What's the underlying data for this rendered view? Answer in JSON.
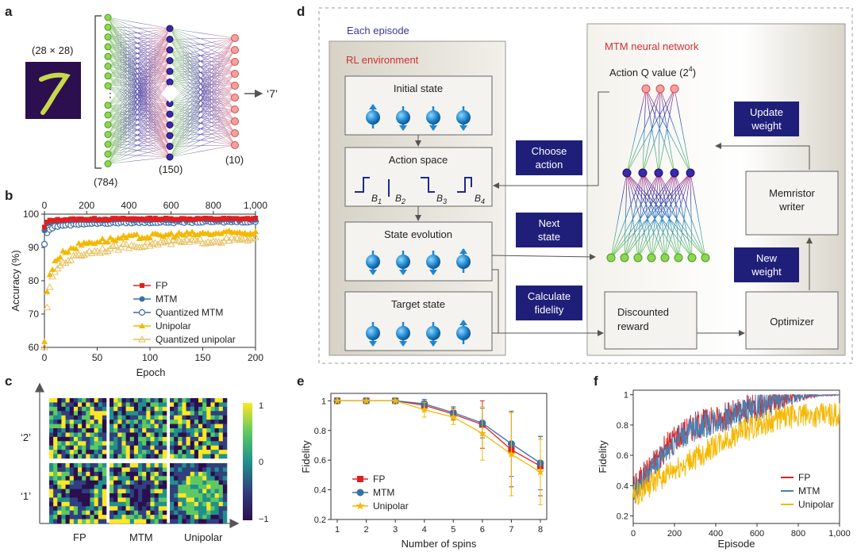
{
  "panel_letters": {
    "a": "a",
    "b": "b",
    "c": "c",
    "d": "d",
    "e": "e",
    "f": "f"
  },
  "panel_a": {
    "input_size": "(28 × 28)",
    "layer_labels": [
      "(784)",
      "(150)",
      "(10)"
    ],
    "output": "‘7’",
    "colors": [
      "#7fd14b",
      "#2a1f9a",
      "#f08080"
    ]
  },
  "panel_d": {
    "episode_label": "Each episode",
    "env_label": "RL environment",
    "net_label": "MTM neural network",
    "initial_state": "Initial state",
    "action_space": "Action space",
    "action_labels": [
      "B",
      "B",
      "B",
      "B"
    ],
    "action_subscripts": [
      "1",
      "2",
      "3",
      "4"
    ],
    "state_evolution": "State evolution",
    "target_state": "Target state",
    "choose_action": [
      "Choose",
      "action"
    ],
    "next_state": [
      "Next",
      "state"
    ],
    "calculate_fidelity": [
      "Calculate",
      "fidelity"
    ],
    "action_q": "Action Q value (2",
    "action_q_exp": "4",
    "action_q_close": ")",
    "update_weight": [
      "Update",
      "weight"
    ],
    "memristor_writer": [
      "Memristor",
      "writer"
    ],
    "new_weight": [
      "New",
      "weight"
    ],
    "discounted_reward": [
      "Discounted",
      "reward"
    ],
    "optimizer": "Optimizer"
  },
  "panel_c": {
    "row_labels": [
      "‘2’",
      "‘1’"
    ],
    "col_labels": [
      "FP",
      "MTM",
      "Unipolar"
    ],
    "colorbar_ticks": [
      "1",
      "0",
      "−1"
    ]
  },
  "chart_data": [
    {
      "id": "b",
      "type": "scatter",
      "xlabel": "Epoch",
      "ylabel": "Accuracy (%)",
      "xlim": [
        0,
        200
      ],
      "ylim": [
        60,
        100
      ],
      "x_ticks": [
        "0",
        "50",
        "100",
        "150",
        "200"
      ],
      "y_ticks": [
        "60",
        "70",
        "80",
        "90",
        "100"
      ],
      "top_xlim": [
        0,
        1000
      ],
      "top_x_ticks": [
        "0",
        "200",
        "400",
        "600",
        "800",
        "1,000"
      ],
      "legend": [
        "FP",
        "MTM",
        "Quantized MTM",
        "Unipolar",
        "Quantized unipolar"
      ],
      "series": [
        {
          "name": "FP",
          "color": "#e02020",
          "marker": "square",
          "x": [
            0,
            2,
            5,
            10,
            20,
            40,
            80,
            120,
            160,
            200
          ],
          "y": [
            96,
            97.5,
            98,
            98.2,
            98.4,
            98.5,
            98.6,
            98.6,
            98.6,
            98.6
          ]
        },
        {
          "name": "MTM",
          "color": "#3b6ea8",
          "marker": "circle",
          "x": [
            0,
            2,
            5,
            10,
            20,
            40,
            80,
            120,
            160,
            200
          ],
          "y": [
            95,
            97,
            97.6,
            97.9,
            98.1,
            98.2,
            98.3,
            98.3,
            98.4,
            98.4
          ]
        },
        {
          "name": "Quantized MTM",
          "color": "#3b6ea8",
          "marker": "circle-open",
          "x": [
            0,
            2,
            5,
            10,
            20,
            40,
            80,
            120,
            160,
            200
          ],
          "y": [
            91,
            94,
            95.5,
            96.3,
            96.8,
            97.2,
            97.5,
            97.6,
            97.7,
            97.8
          ]
        },
        {
          "name": "Unipolar",
          "color": "#f5b800",
          "marker": "triangle",
          "x": [
            0,
            2,
            5,
            10,
            20,
            40,
            80,
            120,
            160,
            200
          ],
          "y": [
            62,
            75,
            82,
            86,
            89,
            91.5,
            93,
            93.8,
            94.2,
            94.5
          ]
        },
        {
          "name": "Quantized unipolar",
          "color": "#e6c060",
          "marker": "triangle-open",
          "x": [
            0,
            2,
            5,
            10,
            20,
            40,
            80,
            120,
            160,
            200
          ],
          "y": [
            60,
            70,
            78,
            83,
            86,
            88.5,
            90.5,
            91.5,
            92,
            92.5
          ]
        }
      ]
    },
    {
      "id": "e",
      "type": "line",
      "xlabel": "Number of spins",
      "ylabel": "Fidelity",
      "xlim": [
        1,
        8
      ],
      "ylim": [
        0.2,
        1.05
      ],
      "x_ticks": [
        "1",
        "2",
        "3",
        "4",
        "5",
        "6",
        "7",
        "8"
      ],
      "y_ticks": [
        "0.2",
        "0.4",
        "0.6",
        "0.8",
        "1"
      ],
      "legend": [
        "FP",
        "MTM",
        "Unipolar"
      ],
      "x": [
        1,
        2,
        3,
        4,
        5,
        6,
        7,
        8
      ],
      "series": [
        {
          "name": "FP",
          "color": "#e02020",
          "marker": "square",
          "y": [
            1,
            1,
            1,
            0.97,
            0.91,
            0.84,
            0.67,
            0.56
          ],
          "err": [
            0,
            0,
            0,
            0.03,
            0.04,
            0.16,
            0.25,
            0.2
          ]
        },
        {
          "name": "MTM",
          "color": "#3b6ea8",
          "marker": "circle",
          "y": [
            1,
            1,
            1,
            0.98,
            0.92,
            0.85,
            0.71,
            0.58
          ],
          "err": [
            0,
            0,
            0,
            0.03,
            0.04,
            0.1,
            0.22,
            0.18
          ]
        },
        {
          "name": "Unipolar",
          "color": "#f5b800",
          "marker": "star",
          "y": [
            1,
            1,
            1,
            0.94,
            0.89,
            0.78,
            0.64,
            0.52
          ],
          "err": [
            0,
            0,
            0,
            0.05,
            0.05,
            0.18,
            0.28,
            0.22
          ]
        }
      ]
    },
    {
      "id": "f",
      "type": "line",
      "xlabel": "Episode",
      "ylabel": "Fidelity",
      "xlim": [
        0,
        1000
      ],
      "ylim": [
        0.15,
        1.03
      ],
      "x_ticks": [
        "0",
        "200",
        "400",
        "600",
        "800",
        "1,000"
      ],
      "y_ticks": [
        "0.2",
        "0.4",
        "0.6",
        "0.8",
        "1"
      ],
      "legend": [
        "FP",
        "MTM",
        "Unipolar"
      ],
      "series": [
        {
          "name": "FP",
          "color": "#e02020",
          "trend_x": [
            0,
            100,
            200,
            300,
            400,
            500,
            600,
            700,
            800,
            1000
          ],
          "trend_y": [
            0.38,
            0.55,
            0.72,
            0.8,
            0.84,
            0.88,
            0.93,
            0.97,
            0.99,
            1.0
          ],
          "noise": 0.09
        },
        {
          "name": "MTM",
          "color": "#4a7fb0",
          "trend_x": [
            0,
            100,
            200,
            300,
            400,
            500,
            600,
            700,
            800,
            1000
          ],
          "trend_y": [
            0.35,
            0.52,
            0.7,
            0.78,
            0.83,
            0.87,
            0.92,
            0.96,
            0.99,
            1.0
          ],
          "noise": 0.09
        },
        {
          "name": "Unipolar",
          "color": "#f5b800",
          "trend_x": [
            0,
            100,
            200,
            300,
            400,
            500,
            600,
            700,
            800,
            1000
          ],
          "trend_y": [
            0.33,
            0.42,
            0.5,
            0.58,
            0.66,
            0.74,
            0.8,
            0.84,
            0.86,
            0.87
          ],
          "noise": 0.09
        }
      ]
    }
  ]
}
